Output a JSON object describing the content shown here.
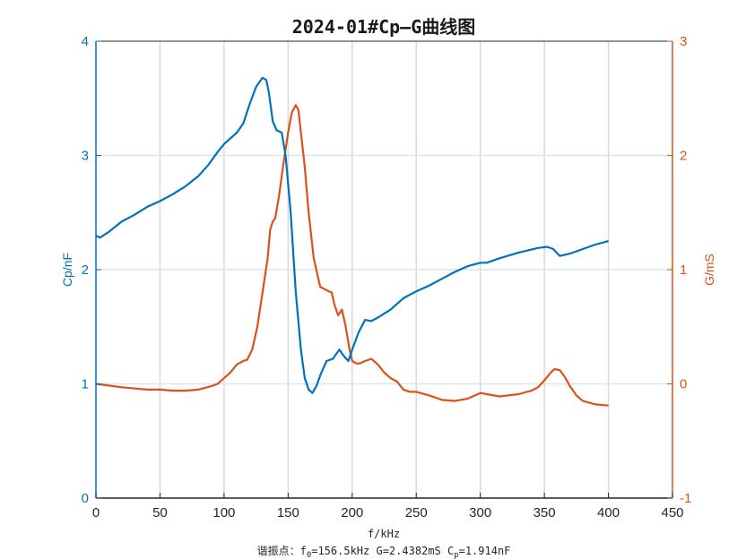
{
  "colors": {
    "left": "#0072BD",
    "right": "#D95319",
    "grid": "#d7e6f2",
    "axis": "#262626"
  },
  "chart_data": {
    "type": "line",
    "title": "2024-01#Cp—G曲线图",
    "xlabel": "f/kHz",
    "ylabel_left": "Cp/nF",
    "ylabel_right": "G/mS",
    "xlim": [
      0,
      450
    ],
    "ylim_left": [
      0,
      4
    ],
    "ylim_right": [
      -1,
      3
    ],
    "x_ticks": [
      "0",
      "50",
      "100",
      "150",
      "200",
      "250",
      "300",
      "350",
      "400",
      "450"
    ],
    "y_left_ticks": [
      "0",
      "1",
      "2",
      "3",
      "4"
    ],
    "y_right_ticks": [
      "-1",
      "0",
      "1",
      "2",
      "3"
    ],
    "grid": true,
    "annotation": {
      "prefix": "谐振点：f",
      "f_sub": "0",
      "f_text": "=156.5kHz  G=2.4382mS  C",
      "c_sub": "p",
      "c_text": "=1.914nF"
    },
    "series": [
      {
        "name": "Cp",
        "axis": "left",
        "x": [
          0,
          3,
          10,
          20,
          30,
          40,
          50,
          60,
          70,
          80,
          88,
          95,
          100,
          105,
          110,
          115,
          120,
          125,
          130,
          133,
          135,
          138,
          141,
          145,
          148,
          152,
          156,
          160,
          163,
          166,
          169,
          172,
          176,
          180,
          185,
          190,
          193,
          197,
          200,
          205,
          210,
          215,
          220,
          230,
          240,
          250,
          260,
          270,
          280,
          290,
          300,
          305,
          315,
          330,
          345,
          352,
          357,
          362,
          370,
          380,
          390,
          400
        ],
        "y": [
          2.3,
          2.28,
          2.33,
          2.42,
          2.48,
          2.55,
          2.6,
          2.66,
          2.73,
          2.82,
          2.92,
          3.03,
          3.1,
          3.15,
          3.2,
          3.28,
          3.45,
          3.6,
          3.68,
          3.66,
          3.55,
          3.3,
          3.22,
          3.2,
          3.0,
          2.5,
          1.8,
          1.3,
          1.05,
          0.95,
          0.92,
          0.98,
          1.1,
          1.2,
          1.22,
          1.3,
          1.25,
          1.2,
          1.3,
          1.45,
          1.56,
          1.55,
          1.58,
          1.65,
          1.75,
          1.81,
          1.86,
          1.92,
          1.98,
          2.03,
          2.06,
          2.06,
          2.1,
          2.15,
          2.19,
          2.2,
          2.18,
          2.12,
          2.14,
          2.18,
          2.22,
          2.25
        ]
      },
      {
        "name": "G",
        "axis": "right",
        "x": [
          0,
          20,
          40,
          50,
          60,
          70,
          80,
          90,
          95,
          100,
          105,
          110,
          115,
          118,
          122,
          126,
          130,
          134,
          136,
          138,
          140,
          143,
          146,
          150,
          153,
          156,
          158,
          160,
          163,
          166,
          170,
          175,
          180,
          184,
          186,
          189,
          192,
          195,
          198,
          200,
          203,
          206,
          210,
          215,
          220,
          225,
          230,
          235,
          240,
          245,
          250,
          260,
          270,
          280,
          290,
          300,
          305,
          315,
          330,
          340,
          345,
          350,
          355,
          358,
          362,
          366,
          370,
          375,
          380,
          390,
          400
        ],
        "y": [
          0.0,
          -0.03,
          -0.05,
          -0.05,
          -0.06,
          -0.06,
          -0.05,
          -0.02,
          0.0,
          0.05,
          0.1,
          0.17,
          0.2,
          0.21,
          0.3,
          0.5,
          0.8,
          1.1,
          1.35,
          1.42,
          1.45,
          1.65,
          1.9,
          2.2,
          2.38,
          2.44,
          2.4,
          2.2,
          1.9,
          1.5,
          1.1,
          0.85,
          0.82,
          0.8,
          0.7,
          0.6,
          0.65,
          0.5,
          0.3,
          0.2,
          0.18,
          0.18,
          0.2,
          0.22,
          0.17,
          0.1,
          0.05,
          0.02,
          -0.05,
          -0.07,
          -0.07,
          -0.1,
          -0.14,
          -0.15,
          -0.13,
          -0.08,
          -0.09,
          -0.11,
          -0.09,
          -0.06,
          -0.03,
          0.03,
          0.1,
          0.13,
          0.12,
          0.06,
          -0.02,
          -0.1,
          -0.15,
          -0.18,
          -0.19
        ]
      }
    ]
  }
}
